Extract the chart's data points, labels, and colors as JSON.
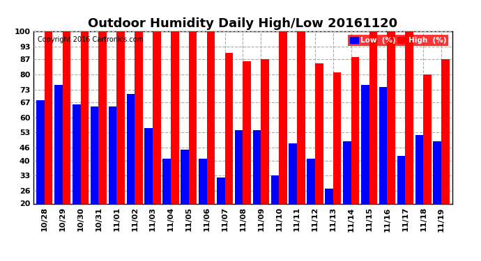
{
  "title": "Outdoor Humidity Daily High/Low 20161120",
  "copyright": "Copyright 2016 Cartronics.com",
  "categories": [
    "10/28",
    "10/29",
    "10/30",
    "10/31",
    "11/01",
    "11/02",
    "11/03",
    "11/04",
    "11/05",
    "11/06",
    "11/07",
    "11/08",
    "11/09",
    "11/10",
    "11/11",
    "11/12",
    "11/13",
    "11/14",
    "11/15",
    "11/16",
    "11/17",
    "11/18",
    "11/19"
  ],
  "high": [
    100,
    100,
    100,
    100,
    100,
    100,
    100,
    100,
    100,
    100,
    90,
    86,
    87,
    100,
    100,
    85,
    81,
    88,
    100,
    100,
    100,
    80,
    87
  ],
  "low": [
    68,
    75,
    66,
    65,
    65,
    71,
    55,
    41,
    45,
    41,
    32,
    54,
    54,
    33,
    48,
    41,
    27,
    49,
    75,
    74,
    42,
    52,
    49
  ],
  "high_color": "#ff0000",
  "low_color": "#0000ff",
  "bg_color": "#ffffff",
  "ylim": [
    20,
    100
  ],
  "yticks": [
    20,
    26,
    33,
    40,
    46,
    53,
    60,
    67,
    73,
    80,
    87,
    93,
    100
  ],
  "grid_color": "#aaaaaa",
  "title_fontsize": 13,
  "tick_fontsize": 8,
  "bar_width": 0.45,
  "legend_low_label": "Low  (%)",
  "legend_high_label": "High  (%)"
}
